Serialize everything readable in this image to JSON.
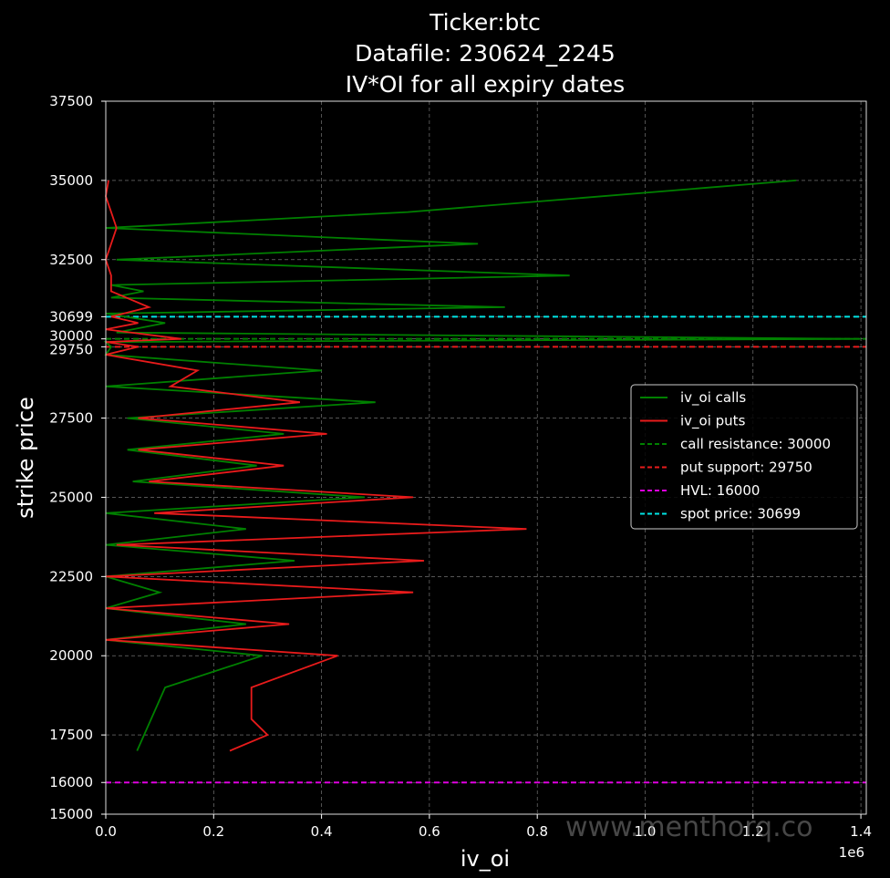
{
  "watermark": "www.menthorq.co",
  "chart_data": {
    "type": "line",
    "title_lines": [
      "Ticker:btc",
      "Datafile: 230624_2245",
      "IV*OI for all expiry dates"
    ],
    "xlabel": "iv_oi",
    "ylabel": "strike price",
    "x_offset_text": "1e6",
    "xlim": [
      0,
      1.41
    ],
    "ylim": [
      15000,
      37500
    ],
    "x_ticks": [
      0.0,
      0.2,
      0.4,
      0.6,
      0.8,
      1.0,
      1.2,
      1.4
    ],
    "x_tick_labels": [
      "0.0",
      "0.2",
      "0.4",
      "0.6",
      "0.8",
      "1.0",
      "1.2",
      "1.4"
    ],
    "y_ticks": [
      15000,
      16000,
      17500,
      20000,
      22500,
      25000,
      27500,
      29750,
      30000,
      30699,
      32500,
      35000,
      37500
    ],
    "y_tick_labels": [
      "15000",
      "16000",
      "17500",
      "20000",
      "22500",
      "25000",
      "27500",
      "29750",
      "30000",
      "30699",
      "32500",
      "35000",
      "37500"
    ],
    "grid": true,
    "legend_position": "center-right",
    "series": [
      {
        "name": "iv_oi calls",
        "color": "#008000",
        "points": [
          [
            0.058,
            17000
          ],
          [
            0.11,
            19000
          ],
          [
            0.29,
            20000
          ],
          [
            0.0,
            20500
          ],
          [
            0.26,
            21000
          ],
          [
            0.0,
            21500
          ],
          [
            0.1,
            22000
          ],
          [
            0.0,
            22500
          ],
          [
            0.35,
            23000
          ],
          [
            0.0,
            23500
          ],
          [
            0.26,
            24000
          ],
          [
            0.0,
            24500
          ],
          [
            0.48,
            25000
          ],
          [
            0.05,
            25500
          ],
          [
            0.28,
            26000
          ],
          [
            0.04,
            26500
          ],
          [
            0.33,
            27000
          ],
          [
            0.04,
            27500
          ],
          [
            0.5,
            28000
          ],
          [
            0.0,
            28500
          ],
          [
            0.4,
            29000
          ],
          [
            0.0,
            29500
          ],
          [
            0.01,
            29750
          ],
          [
            0.0,
            29900
          ],
          [
            1.4,
            30000
          ],
          [
            0.02,
            30200
          ],
          [
            0.11,
            30500
          ],
          [
            0.0,
            30800
          ],
          [
            0.74,
            31000
          ],
          [
            0.01,
            31300
          ],
          [
            0.07,
            31500
          ],
          [
            0.01,
            31700
          ],
          [
            0.86,
            32000
          ],
          [
            0.02,
            32500
          ],
          [
            0.69,
            33000
          ],
          [
            0.0,
            33500
          ],
          [
            0.56,
            34000
          ],
          [
            1.28,
            35000
          ]
        ]
      },
      {
        "name": "iv_oi puts",
        "color": "#e81b1b",
        "points": [
          [
            0.23,
            17000
          ],
          [
            0.3,
            17500
          ],
          [
            0.27,
            18000
          ],
          [
            0.27,
            19000
          ],
          [
            0.43,
            20000
          ],
          [
            0.0,
            20500
          ],
          [
            0.34,
            21000
          ],
          [
            0.0,
            21500
          ],
          [
            0.57,
            22000
          ],
          [
            0.0,
            22500
          ],
          [
            0.59,
            23000
          ],
          [
            0.02,
            23500
          ],
          [
            0.78,
            24000
          ],
          [
            0.09,
            24500
          ],
          [
            0.57,
            25000
          ],
          [
            0.08,
            25500
          ],
          [
            0.33,
            26000
          ],
          [
            0.06,
            26500
          ],
          [
            0.41,
            27000
          ],
          [
            0.06,
            27500
          ],
          [
            0.36,
            28000
          ],
          [
            0.12,
            28500
          ],
          [
            0.17,
            29000
          ],
          [
            0.0,
            29500
          ],
          [
            0.06,
            29750
          ],
          [
            0.0,
            29900
          ],
          [
            0.14,
            30000
          ],
          [
            0.0,
            30300
          ],
          [
            0.06,
            30500
          ],
          [
            0.01,
            30700
          ],
          [
            0.08,
            31000
          ],
          [
            0.01,
            31500
          ],
          [
            0.01,
            32000
          ],
          [
            0.0,
            32500
          ],
          [
            0.01,
            33000
          ],
          [
            0.02,
            33500
          ],
          [
            0.01,
            34000
          ],
          [
            0.0,
            34500
          ],
          [
            0.005,
            35000
          ]
        ]
      }
    ],
    "hlines": [
      {
        "name": "call resistance: 30000",
        "y": 30000,
        "color": "#008000"
      },
      {
        "name": "put support: 29750",
        "y": 29750,
        "color": "#e81b1b"
      },
      {
        "name": "HVL: 16000",
        "y": 16000,
        "color": "#e000e0"
      },
      {
        "name": "spot price: 30699",
        "y": 30699,
        "color": "#00e5e5"
      }
    ]
  }
}
